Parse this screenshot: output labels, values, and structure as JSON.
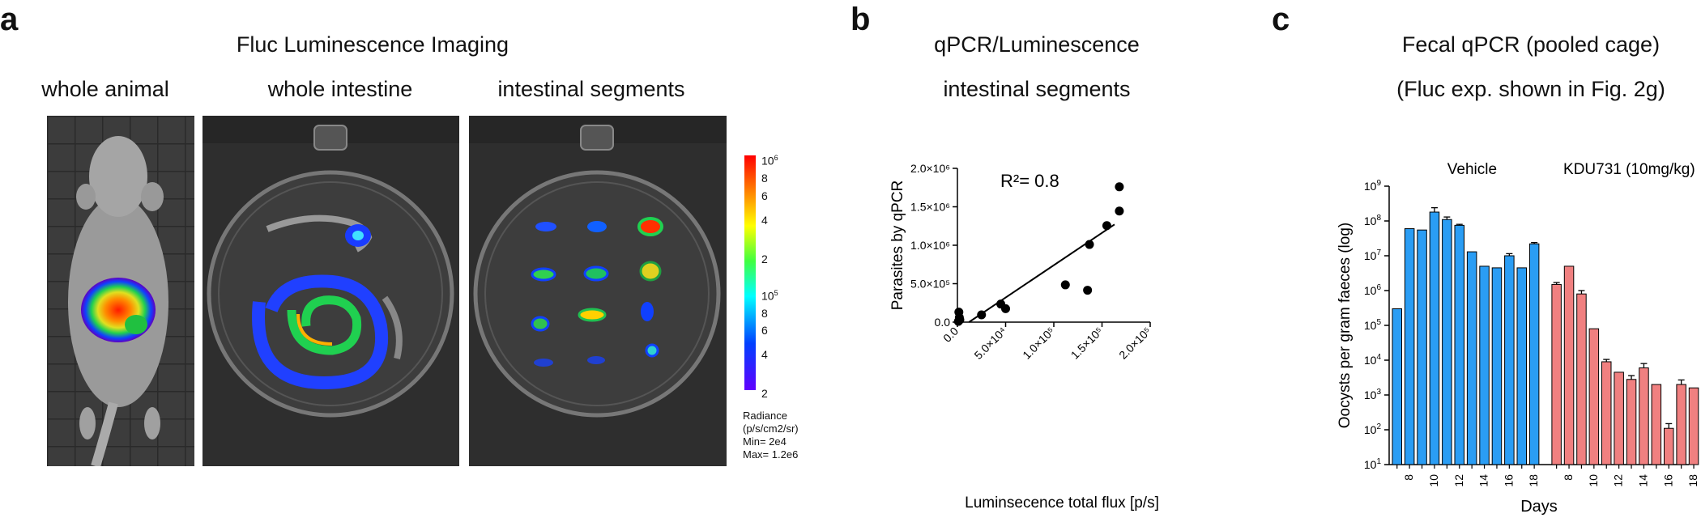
{
  "panel_a": {
    "letter": "a",
    "title": "Fluc Luminescence Imaging",
    "subtitles": [
      "whole animal",
      "whole intestine",
      "intestinal segments"
    ],
    "colorbar": {
      "ticks_top": [
        "10",
        "6"
      ],
      "ticks": [
        "8",
        "6",
        "4",
        "2"
      ],
      "mid_base": "10",
      "mid_exp": "5",
      "ticks_low": [
        "8",
        "6",
        "4",
        "2"
      ],
      "radiance_lines": [
        "Radiance",
        "(p/s/cm2/sr)",
        "Min= 2e4",
        "Max= 1.2e6"
      ]
    },
    "colors": {
      "hot": "#ff2000",
      "warm": "#ffd000",
      "mid": "#30e030",
      "cool": "#1040ff",
      "low": "#5000c0"
    }
  },
  "panel_b": {
    "letter": "b",
    "title_line1": "qPCR/Luminescence",
    "title_line2": "intestinal segments",
    "annotation": "R²= 0.8",
    "chart_data": {
      "type": "scatter",
      "xlabel": "Luminsecence total flux [p/s]",
      "ylabel": "Parasites by qPCR",
      "xlim": [
        0,
        200000
      ],
      "ylim": [
        0,
        2000000
      ],
      "x_ticks": [
        "0.0",
        "5.0×10⁴",
        "1.0×10⁵",
        "1.5×10⁵",
        "2.0×10⁵"
      ],
      "y_ticks": [
        "0.0",
        "5.0×10⁵",
        "1.0×10⁶",
        "1.5×10⁶",
        "2.0×10⁶"
      ],
      "points": [
        {
          "x": 1500,
          "y": 130000
        },
        {
          "x": 2000,
          "y": 60000
        },
        {
          "x": 2500,
          "y": 30000
        },
        {
          "x": 1000,
          "y": 10000
        },
        {
          "x": 25000,
          "y": 95000
        },
        {
          "x": 45000,
          "y": 235000
        },
        {
          "x": 50000,
          "y": 175000
        },
        {
          "x": 112000,
          "y": 485000
        },
        {
          "x": 135000,
          "y": 415000
        },
        {
          "x": 137000,
          "y": 1010000
        },
        {
          "x": 155000,
          "y": 1255000
        },
        {
          "x": 168000,
          "y": 1445000
        },
        {
          "x": 168000,
          "y": 1760000
        }
      ],
      "fit_line": {
        "x0": 12000,
        "y0": 0,
        "x1": 163000,
        "y1": 1270000
      },
      "grid": false
    }
  },
  "panel_c": {
    "letter": "c",
    "title_line1": "Fecal qPCR (pooled cage)",
    "title_line2": "(Fluc exp. shown in Fig. 2g)",
    "group_labels": [
      "Vehicle",
      "KDU731 (10mg/kg)"
    ],
    "chart_data": {
      "type": "bar",
      "ylabel": "Oocysts per gram faeces (log)",
      "xlabel": "Days",
      "yscale": "log",
      "ylim": [
        10,
        1000000000
      ],
      "y_ticks": [
        {
          "base": "10",
          "exp": "1"
        },
        {
          "base": "10",
          "exp": "2"
        },
        {
          "base": "10",
          "exp": "3"
        },
        {
          "base": "10",
          "exp": "4"
        },
        {
          "base": "10",
          "exp": "5"
        },
        {
          "base": "10",
          "exp": "6"
        },
        {
          "base": "10",
          "exp": "7"
        },
        {
          "base": "10",
          "exp": "8"
        },
        {
          "base": "10",
          "exp": "9"
        }
      ],
      "x_tick_labels": [
        "8",
        "10",
        "12",
        "14",
        "16",
        "18",
        "8",
        "10",
        "12",
        "14",
        "16",
        "18"
      ],
      "series": [
        {
          "name": "Vehicle",
          "color": "#2a9df4",
          "days": [
            7,
            8,
            9,
            10,
            11,
            12,
            13,
            14,
            15,
            16,
            17,
            18
          ],
          "values": [
            300000,
            60000000,
            55000000,
            180000000,
            110000000,
            75000000,
            13000000,
            5000000,
            4500000,
            10000000,
            4500000,
            22000000
          ],
          "errors": [
            0,
            0,
            0,
            60000000,
            20000000,
            5000000,
            0,
            0,
            0,
            1500000,
            0,
            2000000
          ]
        },
        {
          "name": "KDU731 (10mg/kg)",
          "color": "#f08080",
          "days": [
            7,
            8,
            9,
            10,
            11,
            12,
            13,
            14,
            15,
            16,
            17,
            18
          ],
          "values": [
            1500000,
            5000000,
            800000,
            80000,
            9000,
            4500,
            2800,
            6000,
            2000,
            110,
            2000,
            1600
          ],
          "errors": [
            200000,
            0,
            200000,
            0,
            1500,
            0,
            800,
            2000,
            0,
            40,
            700,
            0
          ]
        }
      ]
    }
  }
}
